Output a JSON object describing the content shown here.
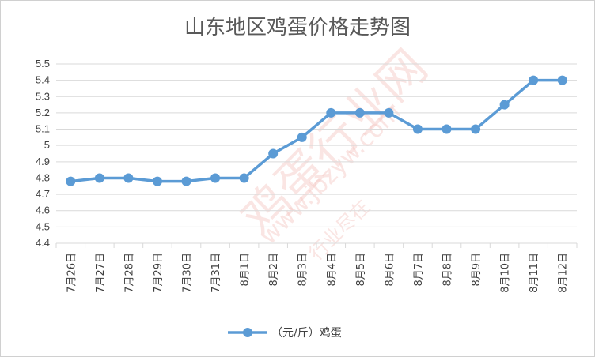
{
  "chart_data": {
    "type": "line",
    "title": "山东地区鸡蛋价格走势图",
    "xlabel": "",
    "ylabel": "",
    "categories": [
      "7月26日",
      "7月27日",
      "7月28日",
      "7月29日",
      "7月30日",
      "7月31日",
      "8月1日",
      "8月2日",
      "8月3日",
      "8月4日",
      "8月5日",
      "8月6日",
      "8月7日",
      "8月8日",
      "8月9日",
      "8月10日",
      "8月11日",
      "8月12日"
    ],
    "series": [
      {
        "name": "（元/斤）鸡蛋",
        "values": [
          4.78,
          4.8,
          4.8,
          4.78,
          4.78,
          4.8,
          4.8,
          4.95,
          5.05,
          5.2,
          5.2,
          5.2,
          5.1,
          5.1,
          5.1,
          5.25,
          5.4,
          5.4
        ]
      }
    ],
    "ylim": [
      4.4,
      5.5
    ],
    "yticks": [
      "4.4",
      "4.5",
      "4.6",
      "4.7",
      "4.8",
      "4.9",
      "5",
      "5.1",
      "5.2",
      "5.3",
      "5.4",
      "5.5"
    ],
    "grid": true,
    "legend": "bottom",
    "colors": {
      "series": "#5b9bd5",
      "grid": "#d9d9d9",
      "text": "#404040",
      "title": "#595959"
    }
  },
  "watermark": {
    "name": "鸡蛋行业网",
    "url": "www.jbzyw.com",
    "slogan": "行业尽在"
  }
}
